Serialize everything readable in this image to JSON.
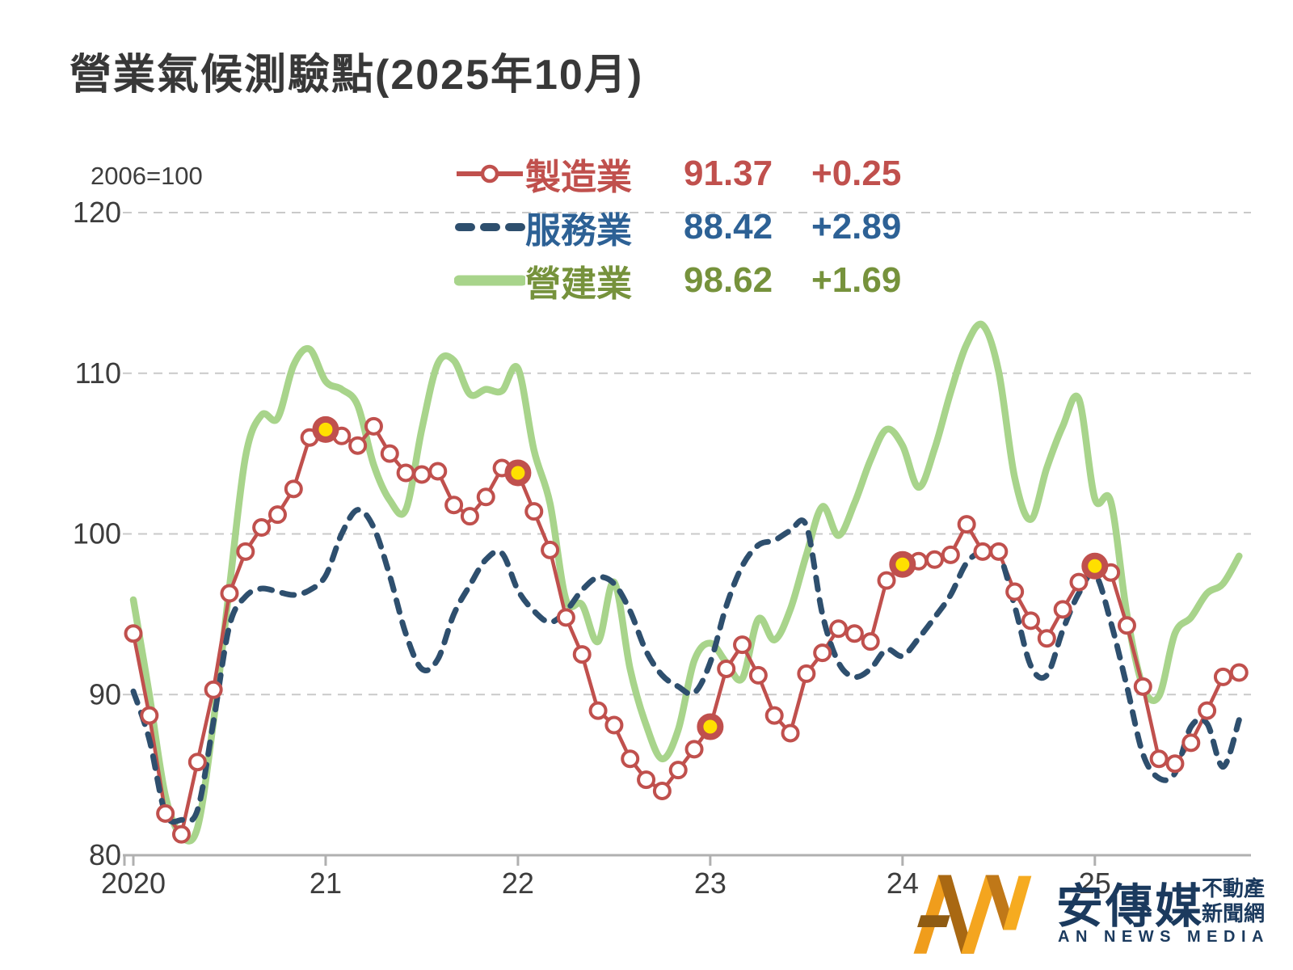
{
  "title": "營業氣候測驗點(2025年10月)",
  "note": "2006=100",
  "legend": {
    "rows": [
      {
        "name": "製造業",
        "value": "91.37",
        "change": "+0.25"
      },
      {
        "name": "服務業",
        "value": "88.42",
        "change": "+2.89"
      },
      {
        "name": "營建業",
        "value": "98.62",
        "change": "+1.69"
      }
    ]
  },
  "logo": {
    "name_cn": "安傳媒",
    "tagline_line1": "不動產",
    "tagline_line2": "新聞網",
    "name_en": "AN NEWS MEDIA"
  },
  "colors": {
    "manufacturing": "#c0504d",
    "services_line": "#2e4f6e",
    "services_text": "#2d6195",
    "construction_line": "#a8d48b",
    "construction_text": "#76923c",
    "january_marker_fill": "#ffdf00",
    "grid": "#c9c9c9",
    "axis": "#b0b0b0",
    "text": "#3d3d3d"
  },
  "chart_data": {
    "type": "line",
    "title": "營業氣候測驗點(2025年10月)",
    "baseline_note": "2006=100",
    "x_start": "2020-01",
    "x_end": "2025-10",
    "x_interval": "month",
    "x_tick_labels": [
      "2020",
      "21",
      "22",
      "23",
      "24",
      "25"
    ],
    "yticks": [
      80,
      90,
      100,
      110,
      120
    ],
    "ylim": [
      80,
      120
    ],
    "grid": "horizontal-dashed",
    "legend_position": "top-center",
    "highlight_january_indices": [
      12,
      24,
      36,
      48,
      60
    ],
    "series": [
      {
        "id": "manufacturing",
        "name": "製造業",
        "latest": "91.37",
        "change": "+0.25",
        "style": "line-circle-markers",
        "color": "#c0504d",
        "text_color": "#c0504d",
        "values": [
          93.8,
          88.7,
          82.6,
          81.3,
          85.8,
          90.3,
          96.3,
          98.9,
          100.4,
          101.2,
          102.8,
          106.0,
          106.5,
          106.1,
          105.5,
          106.7,
          105.0,
          103.8,
          103.7,
          103.9,
          101.8,
          101.1,
          102.3,
          104.1,
          103.8,
          101.4,
          99.0,
          94.8,
          92.5,
          89.0,
          88.1,
          86.0,
          84.7,
          84.0,
          85.3,
          86.6,
          88.0,
          91.6,
          93.1,
          91.2,
          88.7,
          87.6,
          91.3,
          92.6,
          94.1,
          93.8,
          93.3,
          97.1,
          98.1,
          98.3,
          98.4,
          98.7,
          100.6,
          98.9,
          98.9,
          96.4,
          94.6,
          93.5,
          95.3,
          97.0,
          98.0,
          97.6,
          94.3,
          90.5,
          86.0,
          85.7,
          87.0,
          89.0,
          91.1,
          91.37
        ]
      },
      {
        "id": "services",
        "name": "服務業",
        "latest": "88.42",
        "change": "+2.89",
        "style": "dashed",
        "color": "#2e4f6e",
        "text_color": "#2d6195",
        "values": [
          90.2,
          87.2,
          82.6,
          82.2,
          82.8,
          88.3,
          94.3,
          96.1,
          96.6,
          96.4,
          96.2,
          96.5,
          97.4,
          100.0,
          101.5,
          100.4,
          97.4,
          93.8,
          91.6,
          92.2,
          95.0,
          96.8,
          98.4,
          98.8,
          96.5,
          95.2,
          94.5,
          95.2,
          96.5,
          97.3,
          96.9,
          95.2,
          92.7,
          91.2,
          90.5,
          90.1,
          92.0,
          95.5,
          98.0,
          99.3,
          99.6,
          100.2,
          100.5,
          95.0,
          92.0,
          91.1,
          91.6,
          92.8,
          92.4,
          93.5,
          94.8,
          96.2,
          98.2,
          98.9,
          98.8,
          95.5,
          91.8,
          91.2,
          94.0,
          96.3,
          97.5,
          94.5,
          90.5,
          86.3,
          84.8,
          85.1,
          88.0,
          88.2,
          85.5,
          88.42
        ]
      },
      {
        "id": "construction",
        "name": "營建業",
        "latest": "98.62",
        "change": "+1.69",
        "style": "solid-thick",
        "color": "#a8d48b",
        "text_color": "#76923c",
        "values": [
          95.9,
          90.0,
          83.7,
          81.2,
          81.7,
          88.3,
          96.7,
          104.8,
          107.4,
          107.2,
          110.5,
          111.5,
          109.5,
          109.0,
          108.0,
          104.3,
          102.1,
          101.5,
          106.5,
          110.6,
          110.8,
          108.7,
          109.0,
          108.9,
          110.3,
          105.2,
          101.9,
          95.9,
          95.6,
          93.3,
          97.0,
          91.6,
          88.1,
          86.0,
          87.8,
          92.1,
          93.2,
          92.0,
          91.0,
          94.7,
          93.4,
          95.3,
          98.7,
          101.7,
          99.9,
          101.9,
          104.6,
          106.5,
          105.5,
          102.9,
          105.3,
          108.8,
          111.8,
          113.0,
          110.1,
          103.5,
          100.9,
          104.1,
          106.7,
          108.4,
          102.2,
          102.0,
          95.0,
          90.5,
          89.9,
          93.8,
          94.8,
          96.3,
          96.9,
          98.62
        ]
      }
    ]
  }
}
